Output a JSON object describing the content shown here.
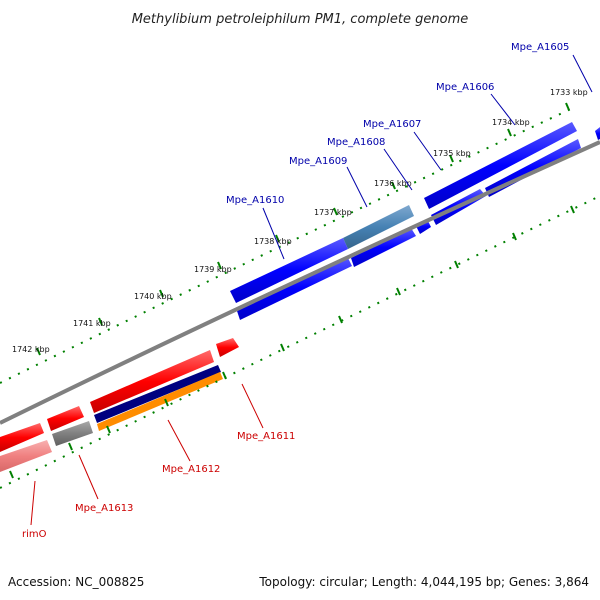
{
  "title": "Methylibium petroleiphilum PM1, complete genome",
  "footer": {
    "accession": "Accession: NC_008825",
    "summary": "Topology: circular; Length: 4,044,195 bp; Genes: 3,864"
  },
  "colors": {
    "forward_gene": "#0000ff",
    "reverse_gene": "#ff0000",
    "highlight_gene": "#4682b4",
    "ruler_ticks": "#008000",
    "backbone": "#808080",
    "navy_track": "#000080",
    "orange_track": "#ff8c00",
    "pink_track": "#f08080"
  },
  "ruler": {
    "unit": "kbp",
    "labels": [
      "1733 kbp",
      "1734 kbp",
      "1735 kbp",
      "1736 kbp",
      "1737 kbp",
      "1738 kbp",
      "1739 kbp",
      "1740 kbp",
      "1741 kbp",
      "1742 kbp"
    ]
  },
  "genes_forward": [
    {
      "name": "Mpe_A1605"
    },
    {
      "name": "Mpe_A1606"
    },
    {
      "name": "Mpe_A1607"
    },
    {
      "name": "Mpe_A1608"
    },
    {
      "name": "Mpe_A1609"
    },
    {
      "name": "Mpe_A1610"
    }
  ],
  "genes_reverse": [
    {
      "name": "Mpe_A1611"
    },
    {
      "name": "Mpe_A1612"
    },
    {
      "name": "Mpe_A1613"
    },
    {
      "name": "rimO"
    }
  ]
}
